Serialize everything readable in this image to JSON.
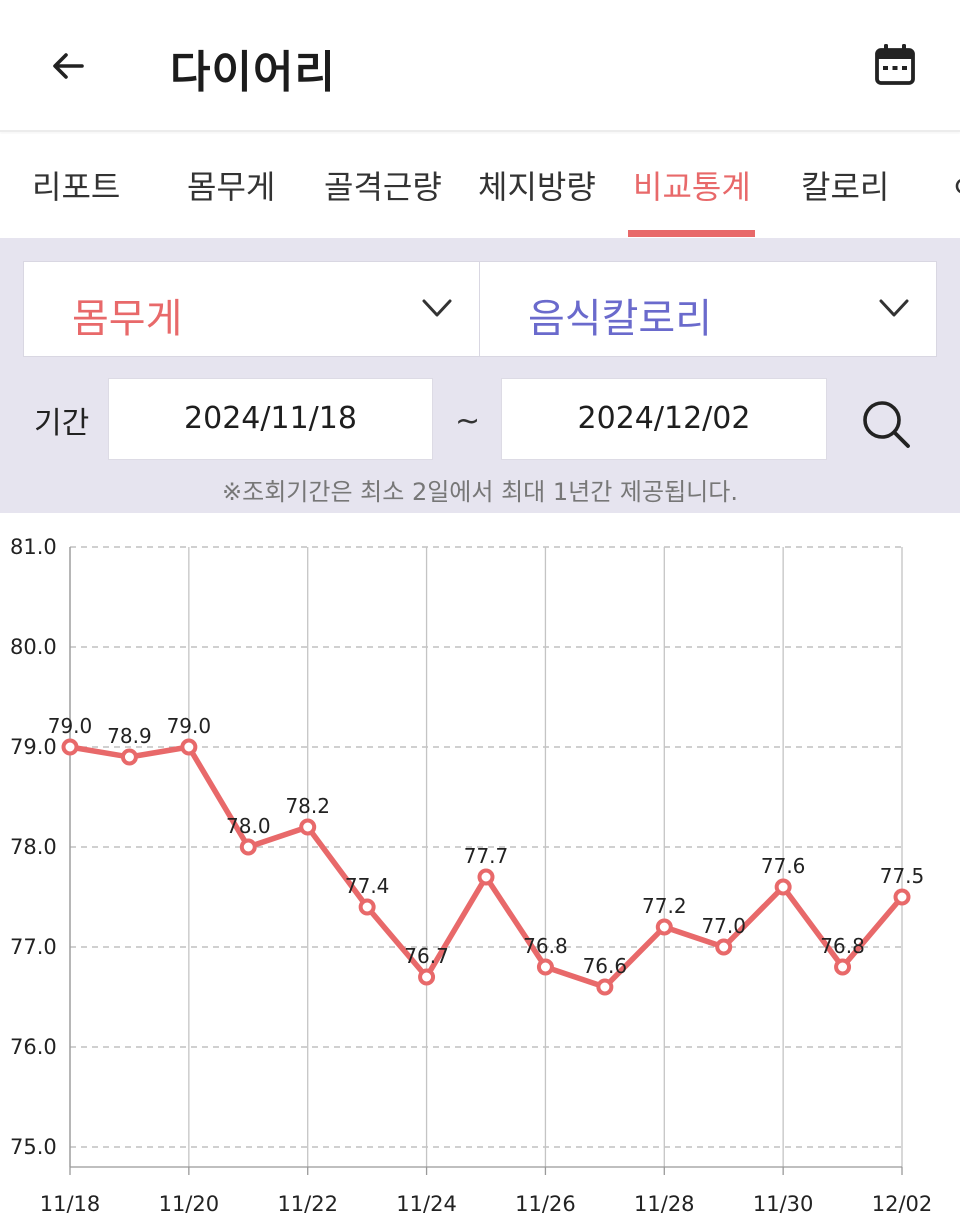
{
  "header": {
    "title": "다이어리",
    "back_icon": "arrow-left-icon",
    "calendar_icon": "calendar-icon"
  },
  "tabs": [
    {
      "label": "리포트"
    },
    {
      "label": "몸무게"
    },
    {
      "label": "골격근량"
    },
    {
      "label": "체지방량"
    },
    {
      "label": "비교통계",
      "active": true
    },
    {
      "label": "칼로리"
    },
    {
      "label": "ㅇ"
    }
  ],
  "filter": {
    "left_select": "몸무게",
    "right_select": "음식칼로리",
    "left_color": "#e8696a",
    "right_color": "#6a6acc",
    "period_label": "기간",
    "start_date": "2024/11/18",
    "separator": "~",
    "end_date": "2024/12/02",
    "note": "※조회기간은 최소 2일에서 최대 1년간 제공됩니다."
  },
  "chart_data": {
    "type": "line",
    "x": [
      "11/18",
      "11/19",
      "11/20",
      "11/21",
      "11/22",
      "11/23",
      "11/24",
      "11/25",
      "11/26",
      "11/27",
      "11/28",
      "11/29",
      "11/30",
      "12/01",
      "12/02"
    ],
    "xtick_labels": [
      "11/18",
      "11/20",
      "11/22",
      "11/24",
      "11/26",
      "11/28",
      "11/30",
      "12/02"
    ],
    "ytick_labels": [
      "75.0",
      "76.0",
      "77.0",
      "78.0",
      "79.0",
      "80.0",
      "81.0"
    ],
    "values": [
      79.0,
      78.9,
      79.0,
      78.0,
      78.2,
      77.4,
      76.7,
      77.7,
      76.8,
      76.6,
      77.2,
      77.0,
      77.6,
      76.8,
      77.5
    ],
    "value_labels": [
      "79.0",
      "78.9",
      "79.0",
      "78.0",
      "78.2",
      "77.4",
      "76.7",
      "77.7",
      "76.8",
      "76.6",
      "77.2",
      "77.0",
      "77.6",
      "76.8",
      "77.5"
    ],
    "ylim": [
      74.8,
      81.0
    ],
    "line_color": "#e8696a",
    "grid": true
  }
}
